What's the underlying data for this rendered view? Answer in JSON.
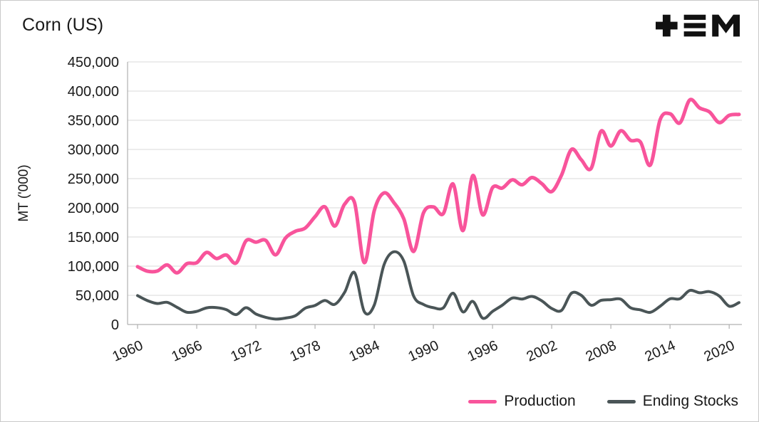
{
  "chart_data": {
    "type": "line",
    "title": "Corn (US)",
    "ylabel": "MT ('000)",
    "ylim": [
      0,
      450000
    ],
    "ytick_interval": 50000,
    "xticks": [
      1960,
      1966,
      1972,
      1978,
      1984,
      1990,
      1996,
      2002,
      2008,
      2014,
      2020
    ],
    "grid": true,
    "legend_position": "bottom-right",
    "x": [
      1960,
      1961,
      1962,
      1963,
      1964,
      1965,
      1966,
      1967,
      1968,
      1969,
      1970,
      1971,
      1972,
      1973,
      1974,
      1975,
      1976,
      1977,
      1978,
      1979,
      1980,
      1981,
      1982,
      1983,
      1984,
      1985,
      1986,
      1987,
      1988,
      1989,
      1990,
      1991,
      1992,
      1993,
      1994,
      1995,
      1996,
      1997,
      1998,
      1999,
      2000,
      2001,
      2002,
      2003,
      2004,
      2005,
      2006,
      2007,
      2008,
      2009,
      2010,
      2011,
      2012,
      2013,
      2014,
      2015,
      2016,
      2017,
      2018,
      2019,
      2020,
      2021
    ],
    "series": [
      {
        "name": "Production",
        "color": "#F8549B",
        "values": [
          99185,
          91388,
          91606,
          102093,
          88505,
          104216,
          105856,
          123505,
          113028,
          119130,
          105471,
          143404,
          141051,
          144145,
          119368,
          148024,
          159740,
          165223,
          184615,
          201655,
          168647,
          206222,
          209180,
          106030,
          194928,
          225453,
          208944,
          181142,
          125194,
          191320,
          201534,
          189868,
          240719,
          160954,
          255295,
          187970,
          234518,
          233864,
          247882,
          239549,
          251854,
          241377,
          227767,
          256229,
          299876,
          282263,
          267503,
          331177,
          305911,
          331921,
          315618,
          312789,
          273192,
          351272,
          361091,
          345506,
          384778,
          371096,
          364262,
          345962,
          358447,
          360000
        ]
      },
      {
        "name": "Ending Stocks",
        "color": "#4A5557",
        "values": [
          49500,
          41000,
          36000,
          38000,
          29500,
          21000,
          22500,
          28500,
          29000,
          25500,
          16900,
          28800,
          18100,
          12300,
          9300,
          11000,
          15000,
          27900,
          32700,
          41100,
          34500,
          55200,
          89000,
          22000,
          33200,
          102500,
          124600,
          108800,
          48600,
          34400,
          28800,
          28400,
          53700,
          21600,
          39600,
          10800,
          22400,
          33200,
          45400,
          43600,
          48200,
          40500,
          27600,
          24300,
          53700,
          50000,
          33100,
          41300,
          42500,
          43400,
          28700,
          25100,
          20900,
          31300,
          44000,
          44100,
          58300,
          54400,
          56400,
          48800,
          31400,
          37600
        ]
      }
    ]
  },
  "logo": {
    "name": "tem-logo"
  }
}
